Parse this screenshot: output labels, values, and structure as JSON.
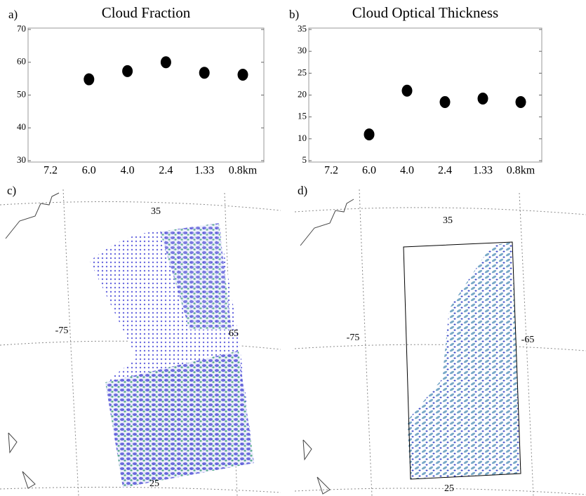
{
  "chart_data": [
    {
      "type": "scatter",
      "panel_label": "a)",
      "title": "Cloud Fraction",
      "categories": [
        "7.2",
        "6.0",
        "4.0",
        "2.4",
        "1.33",
        "0.8km"
      ],
      "values": [
        null,
        54.8,
        57.3,
        60,
        56.8,
        56.2
      ],
      "color": "#000000",
      "ylim": [
        30,
        70
      ],
      "yticks": [
        30,
        40,
        50,
        60,
        70
      ]
    },
    {
      "type": "scatter",
      "panel_label": "b)",
      "title": "Cloud Optical Thickness",
      "categories": [
        "7.2",
        "6.0",
        "4.0",
        "2.4",
        "1.33",
        "0.8km"
      ],
      "values": [
        null,
        11,
        21,
        18.4,
        19.2,
        18.4
      ],
      "color": "#000000",
      "ylim": [
        5,
        35
      ],
      "yticks": [
        5,
        10,
        15,
        20,
        25,
        30,
        35
      ]
    }
  ],
  "maps": [
    {
      "panel_label": "c)",
      "lat_top": "35",
      "lon_left": "-75",
      "lon_right": "65",
      "lat_bottom": "25"
    },
    {
      "panel_label": "d)",
      "lat_top": "35",
      "lon_left": "-75",
      "lon_right": "-65",
      "lat_bottom": "25"
    }
  ]
}
